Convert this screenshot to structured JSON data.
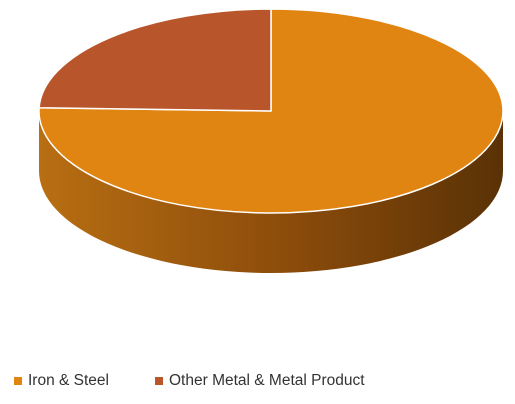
{
  "chart_data": {
    "type": "pie",
    "title": "",
    "categories": [
      "Iron & Steel",
      "Other Metal & Metal Product"
    ],
    "values": [
      75.5,
      24.5
    ],
    "colors": [
      "#E08412",
      "#B9552A"
    ],
    "legend_position": "bottom",
    "style": "3d"
  },
  "legend": {
    "items": [
      {
        "label": "Iron & Steel",
        "color": "#E08412"
      },
      {
        "label": "Other Metal & Metal Product",
        "color": "#B9552A"
      }
    ]
  }
}
